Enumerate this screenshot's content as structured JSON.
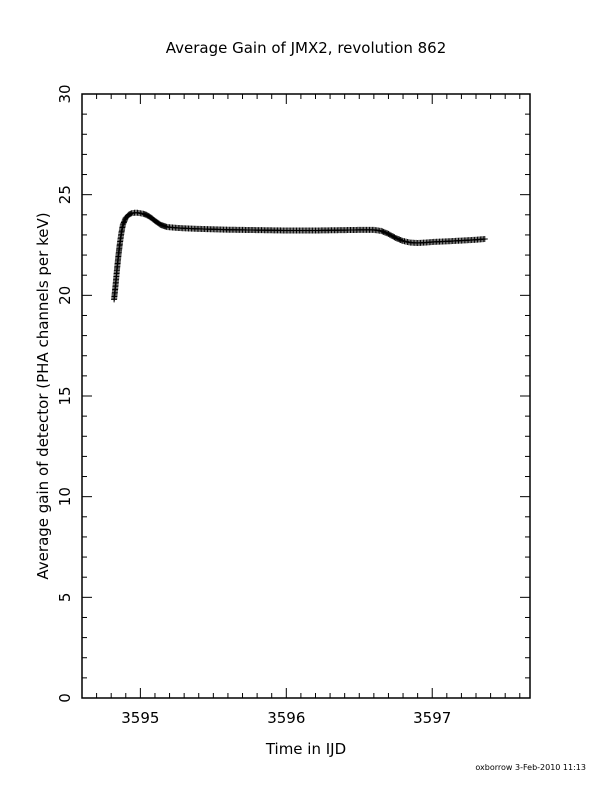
{
  "chart_data": {
    "type": "scatter",
    "title": "Average Gain of JMX2, revolution 862",
    "xlabel": "Time in IJD",
    "ylabel": "Average gain of detector (PHA channels per keV)",
    "xlim": [
      3594.6,
      3597.67
    ],
    "ylim": [
      0,
      30
    ],
    "x_major_ticks": [
      3595,
      3596,
      3597
    ],
    "x_tick_labels": [
      "3595",
      "3596",
      "3597"
    ],
    "y_major_ticks": [
      0,
      5,
      10,
      15,
      20,
      25,
      30
    ],
    "y_tick_labels": [
      "0",
      "5",
      "10",
      "15",
      "20",
      "25",
      "30"
    ],
    "grid": false,
    "marker": "plus",
    "series": [
      {
        "x": [
          3594.82,
          3594.83,
          3594.84,
          3594.85,
          3594.86,
          3594.87,
          3594.88,
          3594.9,
          3594.92,
          3594.94,
          3594.96,
          3594.98,
          3595.0,
          3595.02,
          3595.04,
          3595.06,
          3595.08,
          3595.1,
          3595.12,
          3595.14,
          3595.16,
          3595.18,
          3595.2,
          3595.25,
          3595.3,
          3595.4,
          3595.5,
          3595.6,
          3595.7,
          3595.8,
          3595.9,
          3596.0,
          3596.1,
          3596.2,
          3596.3,
          3596.4,
          3596.5,
          3596.6,
          3596.65,
          3596.7,
          3596.75,
          3596.8,
          3596.85,
          3596.9,
          3596.95,
          3597.0,
          3597.1,
          3597.2,
          3597.3,
          3597.36
        ],
        "y": [
          19.8,
          20.5,
          21.3,
          22.0,
          22.6,
          23.1,
          23.5,
          23.85,
          24.0,
          24.08,
          24.1,
          24.1,
          24.08,
          24.05,
          24.0,
          23.92,
          23.82,
          23.7,
          23.6,
          23.5,
          23.45,
          23.4,
          23.38,
          23.35,
          23.33,
          23.3,
          23.28,
          23.26,
          23.25,
          23.24,
          23.23,
          23.22,
          23.22,
          23.22,
          23.23,
          23.24,
          23.25,
          23.25,
          23.2,
          23.05,
          22.85,
          22.7,
          22.62,
          22.6,
          22.62,
          22.65,
          22.68,
          22.72,
          22.76,
          22.8
        ]
      }
    ]
  },
  "footer": "oxborrow   3-Feb-2010 11:13"
}
